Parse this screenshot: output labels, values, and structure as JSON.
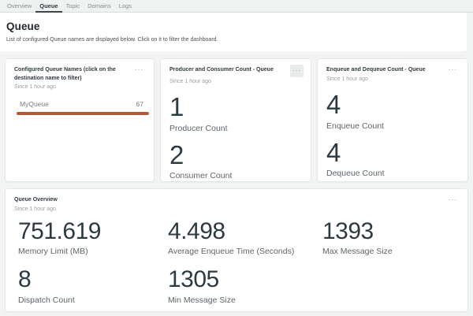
{
  "colors": {
    "bar": "#b15a3d",
    "active_tab_underline": "#3f464a"
  },
  "icons": {
    "ellipsis": "···"
  },
  "tabs": [
    {
      "label": "Overview",
      "active": false
    },
    {
      "label": "Queue",
      "active": true
    },
    {
      "label": "Topic",
      "active": false
    },
    {
      "label": "Domains",
      "active": false
    },
    {
      "label": "Logs",
      "active": false
    }
  ],
  "header": {
    "title": "Queue",
    "subtitle": "List of configured Queue names are displayed below. Click on it to filter the dashboard."
  },
  "cards": {
    "queue_names": {
      "title": "Configured Queue Names (click on the destination name to filter)",
      "since": "Since 1 hour ago",
      "chart_type": "bar",
      "rows": [
        {
          "name": "MyQueue",
          "value": "67"
        }
      ]
    },
    "producer_consumer": {
      "title": "Producer and Consumer Count - Queue",
      "since": "Since 1 hour ago",
      "metrics": [
        {
          "value": "1",
          "label": "Producer Count"
        },
        {
          "value": "2",
          "label": "Consumer Count"
        }
      ]
    },
    "enqueue_dequeue": {
      "title": "Enqueue and Dequeue Count - Queue",
      "since": "Since 1 hour ago",
      "metrics": [
        {
          "value": "4",
          "label": "Enqueue Count"
        },
        {
          "value": "4",
          "label": "Dequeue Count"
        }
      ]
    },
    "queue_overview": {
      "title": "Queue Overview",
      "since": "Since 1 hour ago",
      "metrics": [
        {
          "value": "751.619",
          "label": "Memory Limit (MB)"
        },
        {
          "value": "4.498",
          "label": "Average Enqueue Time (Seconds)"
        },
        {
          "value": "1393",
          "label": "Max Message Size"
        },
        {
          "value": "8",
          "label": "Dispatch Count"
        },
        {
          "value": "1305",
          "label": "Min Message Size"
        }
      ]
    }
  }
}
